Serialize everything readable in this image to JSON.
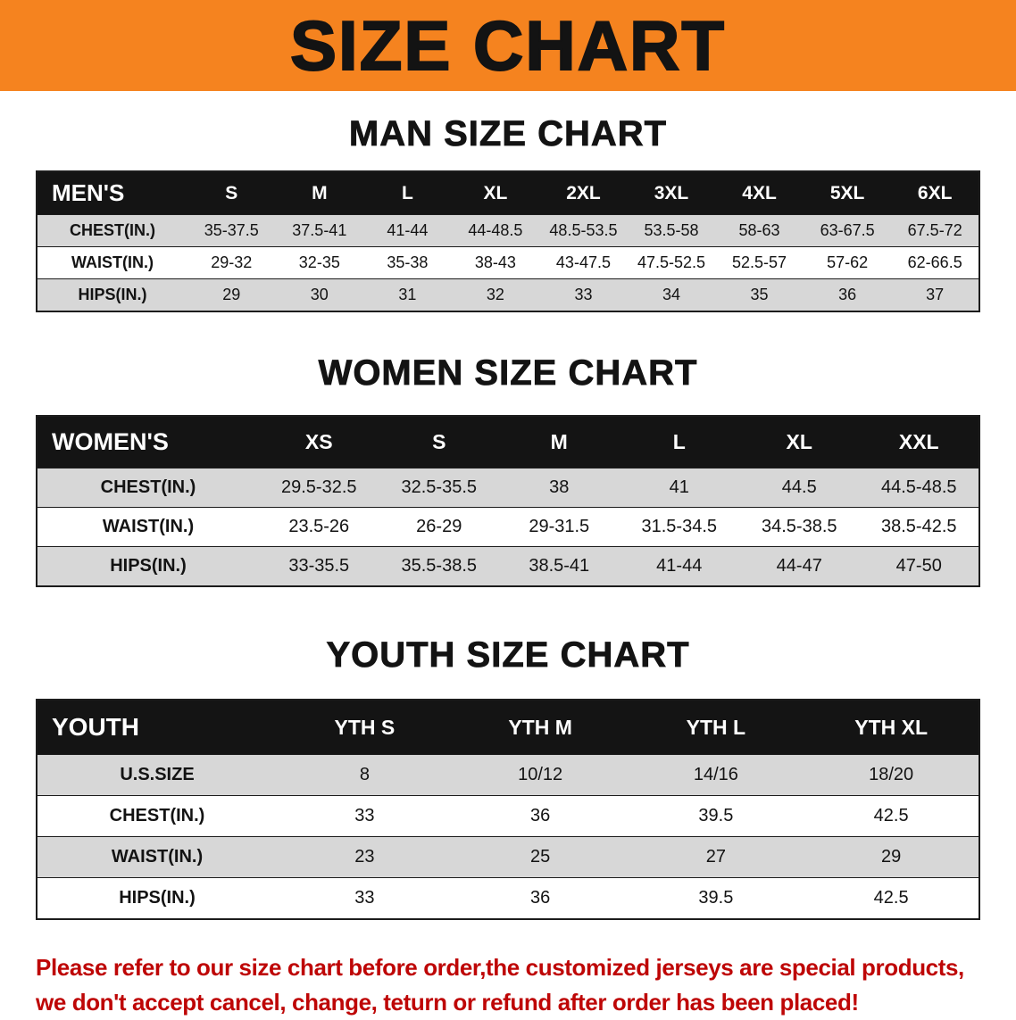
{
  "banner": {
    "title": "SIZE CHART"
  },
  "colors": {
    "banner_bg": "#F5831F",
    "table_header_bg": "#141414",
    "stripe_row": "#D7D7D7",
    "footer_text": "#BE0606"
  },
  "sections": [
    {
      "heading": "MAN SIZE CHART",
      "table": {
        "header": [
          "MEN'S",
          "S",
          "M",
          "L",
          "XL",
          "2XL",
          "3XL",
          "4XL",
          "5XL",
          "6XL"
        ],
        "rows": [
          [
            "CHEST(IN.)",
            "35-37.5",
            "37.5-41",
            "41-44",
            "44-48.5",
            "48.5-53.5",
            "53.5-58",
            "58-63",
            "63-67.5",
            "67.5-72"
          ],
          [
            "WAIST(IN.)",
            "29-32",
            "32-35",
            "35-38",
            "38-43",
            "43-47.5",
            "47.5-52.5",
            "52.5-57",
            "57-62",
            "62-66.5"
          ],
          [
            "HIPS(IN.)",
            "29",
            "30",
            "31",
            "32",
            "33",
            "34",
            "35",
            "36",
            "37"
          ]
        ]
      }
    },
    {
      "heading": "WOMEN SIZE CHART",
      "table": {
        "header": [
          "WOMEN'S",
          "XS",
          "S",
          "M",
          "L",
          "XL",
          "XXL"
        ],
        "rows": [
          [
            "CHEST(IN.)",
            "29.5-32.5",
            "32.5-35.5",
            "38",
            "41",
            "44.5",
            "44.5-48.5"
          ],
          [
            "WAIST(IN.)",
            "23.5-26",
            "26-29",
            "29-31.5",
            "31.5-34.5",
            "34.5-38.5",
            "38.5-42.5"
          ],
          [
            "HIPS(IN.)",
            "33-35.5",
            "35.5-38.5",
            "38.5-41",
            "41-44",
            "44-47",
            "47-50"
          ]
        ]
      }
    },
    {
      "heading": "YOUTH SIZE CHART",
      "table": {
        "header": [
          "YOUTH",
          "YTH S",
          "YTH M",
          "YTH L",
          "YTH XL"
        ],
        "rows": [
          [
            "U.S.SIZE",
            "8",
            "10/12",
            "14/16",
            "18/20"
          ],
          [
            "CHEST(IN.)",
            "33",
            "36",
            "39.5",
            "42.5"
          ],
          [
            "WAIST(IN.)",
            "23",
            "25",
            "27",
            "29"
          ],
          [
            "HIPS(IN.)",
            "33",
            "36",
            "39.5",
            "42.5"
          ]
        ]
      }
    }
  ],
  "footer": {
    "line1": "Please refer to our size chart before order,the customized jerseys are special products,",
    "line2": "we don't accept cancel, change, teturn or refund after order has been placed!"
  }
}
